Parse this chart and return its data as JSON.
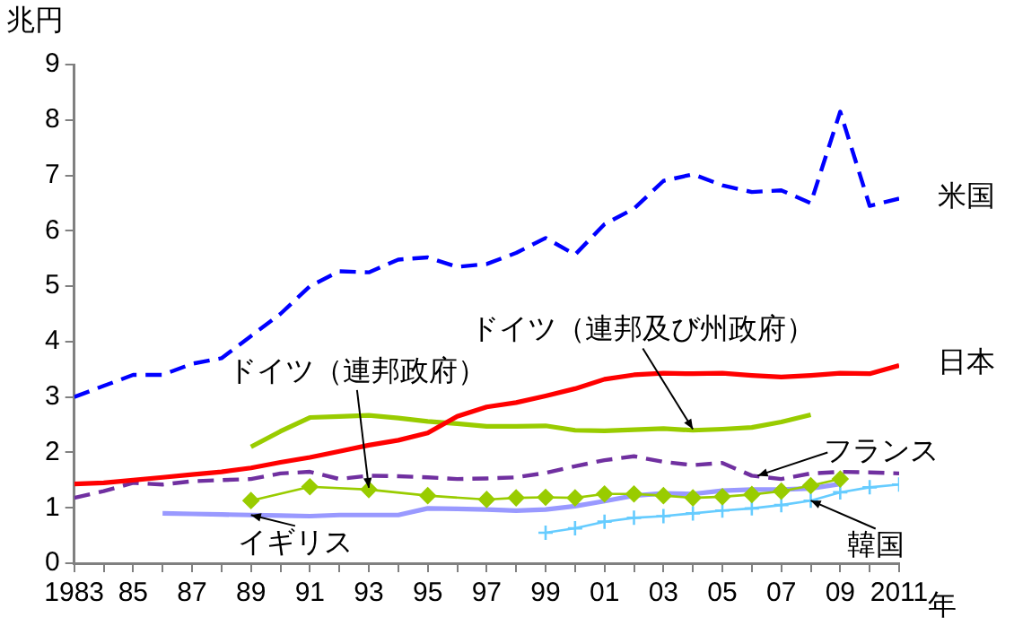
{
  "chart_data": {
    "type": "line",
    "ylabel": "兆円",
    "xlabel": "年",
    "xlim": [
      1983,
      2011
    ],
    "ylim": [
      0,
      9
    ],
    "yticks": [
      0,
      1,
      2,
      3,
      4,
      5,
      6,
      7,
      8,
      9
    ],
    "xticks": [
      {
        "value": 1983,
        "label": "1983"
      },
      {
        "value": 1984,
        "label": null
      },
      {
        "value": 1985,
        "label": "85"
      },
      {
        "value": 1986,
        "label": null
      },
      {
        "value": 1987,
        "label": "87"
      },
      {
        "value": 1988,
        "label": null
      },
      {
        "value": 1989,
        "label": "89"
      },
      {
        "value": 1990,
        "label": null
      },
      {
        "value": 1991,
        "label": "91"
      },
      {
        "value": 1992,
        "label": null
      },
      {
        "value": 1993,
        "label": "93"
      },
      {
        "value": 1994,
        "label": null
      },
      {
        "value": 1995,
        "label": "95"
      },
      {
        "value": 1996,
        "label": null
      },
      {
        "value": 1997,
        "label": "97"
      },
      {
        "value": 1998,
        "label": null
      },
      {
        "value": 1999,
        "label": "99"
      },
      {
        "value": 2000,
        "label": null
      },
      {
        "value": 2001,
        "label": "01"
      },
      {
        "value": 2002,
        "label": null
      },
      {
        "value": 2003,
        "label": "03"
      },
      {
        "value": 2004,
        "label": null
      },
      {
        "value": 2005,
        "label": "05"
      },
      {
        "value": 2006,
        "label": null
      },
      {
        "value": 2007,
        "label": "07"
      },
      {
        "value": 2008,
        "label": null
      },
      {
        "value": 2009,
        "label": "09"
      },
      {
        "value": 2010,
        "label": null
      },
      {
        "value": 2011,
        "label": "2011"
      }
    ],
    "grid": false,
    "legend": false,
    "marker": "none",
    "series": [
      {
        "name": "米国",
        "color": "#0000ff",
        "line_style": "dashed",
        "x": [
          1983,
          1984,
          1985,
          1986,
          1987,
          1988,
          1989,
          1990,
          1991,
          1992,
          1993,
          1994,
          1995,
          1996,
          1997,
          1998,
          1999,
          2000,
          2001,
          2002,
          2003,
          2004,
          2005,
          2006,
          2007,
          2008,
          2009,
          2010,
          2011
        ],
        "values": [
          3.0,
          3.2,
          3.4,
          3.4,
          3.6,
          3.7,
          4.1,
          4.5,
          5.0,
          5.27,
          5.25,
          5.48,
          5.52,
          5.35,
          5.4,
          5.6,
          5.87,
          5.57,
          6.12,
          6.4,
          6.9,
          7.02,
          6.82,
          6.7,
          6.73,
          6.5,
          8.15,
          6.45,
          6.58
        ]
      },
      {
        "name": "日本",
        "color": "#ff0000",
        "line_style": "solid",
        "x": [
          1983,
          1984,
          1985,
          1986,
          1987,
          1988,
          1989,
          1990,
          1991,
          1992,
          1993,
          1994,
          1995,
          1996,
          1997,
          1998,
          1999,
          2000,
          2001,
          2002,
          2003,
          2004,
          2005,
          2006,
          2007,
          2008,
          2009,
          2010,
          2011
        ],
        "values": [
          1.43,
          1.45,
          1.5,
          1.55,
          1.6,
          1.65,
          1.72,
          1.82,
          1.91,
          2.02,
          2.13,
          2.22,
          2.35,
          2.65,
          2.82,
          2.9,
          3.02,
          3.15,
          3.32,
          3.4,
          3.43,
          3.42,
          3.43,
          3.39,
          3.36,
          3.39,
          3.43,
          3.42,
          3.57
        ]
      },
      {
        "name": "ドイツ（連邦及び州政府）",
        "color": "#99cc00",
        "line_style": "solid",
        "x": [
          1989,
          1990,
          1991,
          1992,
          1993,
          1994,
          1995,
          1996,
          1997,
          1998,
          1999,
          2000,
          2001,
          2002,
          2003,
          2004,
          2005,
          2006,
          2007,
          2008
        ],
        "values": [
          2.1,
          2.38,
          2.63,
          2.65,
          2.67,
          2.62,
          2.56,
          2.52,
          2.47,
          2.47,
          2.48,
          2.4,
          2.39,
          2.41,
          2.43,
          2.4,
          2.42,
          2.45,
          2.55,
          2.68
        ]
      },
      {
        "name": "ドイツ（連邦政府）",
        "color": "#99cc00",
        "line_style": "solid",
        "marker": "diamond",
        "x": [
          1989,
          1991,
          1993,
          1995,
          1997,
          1998,
          1999,
          2000,
          2001,
          2002,
          2003,
          2004,
          2005,
          2006,
          2007,
          2008,
          2009
        ],
        "values": [
          1.13,
          1.38,
          1.33,
          1.22,
          1.15,
          1.18,
          1.19,
          1.18,
          1.25,
          1.25,
          1.22,
          1.18,
          1.2,
          1.24,
          1.3,
          1.4,
          1.52
        ]
      },
      {
        "name": "フランス",
        "color": "#7030a0",
        "line_style": "dashed",
        "x": [
          1983,
          1984,
          1985,
          1986,
          1987,
          1988,
          1989,
          1990,
          1991,
          1992,
          1993,
          1994,
          1995,
          1996,
          1997,
          1998,
          1999,
          2000,
          2001,
          2002,
          2003,
          2004,
          2005,
          2006,
          2007,
          2008,
          2009,
          2010,
          2011
        ],
        "values": [
          1.18,
          1.3,
          1.45,
          1.42,
          1.48,
          1.5,
          1.52,
          1.62,
          1.65,
          1.52,
          1.58,
          1.57,
          1.55,
          1.52,
          1.53,
          1.55,
          1.63,
          1.75,
          1.86,
          1.93,
          1.83,
          1.77,
          1.81,
          1.58,
          1.52,
          1.62,
          1.65,
          1.64,
          1.62
        ]
      },
      {
        "name": "イギリス",
        "color": "#9999ff",
        "line_style": "solid",
        "x": [
          1986,
          1987,
          1988,
          1989,
          1990,
          1991,
          1992,
          1993,
          1994,
          1995,
          1996,
          1997,
          1998,
          1999,
          2000,
          2001,
          2002,
          2003,
          2004,
          2005,
          2006,
          2007,
          2008,
          2009
        ],
        "values": [
          0.9,
          0.89,
          0.88,
          0.87,
          0.86,
          0.85,
          0.87,
          0.87,
          0.87,
          0.99,
          0.98,
          0.97,
          0.95,
          0.97,
          1.03,
          1.12,
          1.22,
          1.26,
          1.25,
          1.31,
          1.33,
          1.33,
          1.35,
          1.43
        ]
      },
      {
        "name": "韓国",
        "color": "#66ccff",
        "line_style": "solid",
        "marker": "cross",
        "x": [
          1999,
          2000,
          2001,
          2002,
          2003,
          2004,
          2005,
          2006,
          2007,
          2008,
          2009,
          2010,
          2011
        ],
        "values": [
          0.55,
          0.63,
          0.75,
          0.82,
          0.85,
          0.9,
          0.95,
          0.99,
          1.05,
          1.13,
          1.28,
          1.37,
          1.42
        ]
      }
    ]
  }
}
